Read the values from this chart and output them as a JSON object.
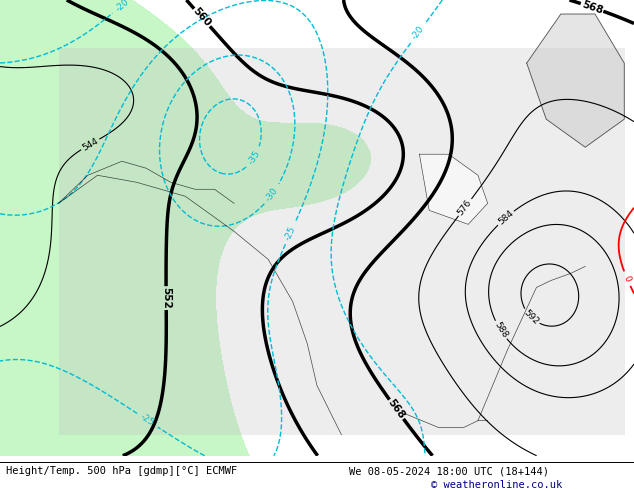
{
  "title_left": "Height/Temp. 500 hPa [gdmp][°C] ECMWF",
  "title_right": "We 08-05-2024 18:00 UTC (18+144)",
  "copyright": "© weatheronline.co.uk",
  "bg_color": "#ffffff",
  "map_bg": "#90ee90",
  "height_contour_color": "#000000",
  "temp_pos_color": "#ff8c00",
  "temp_neg_color": "#00bcd4",
  "temp_zero_color": "#ff0000",
  "figwidth": 6.34,
  "figheight": 4.9,
  "dpi": 100
}
